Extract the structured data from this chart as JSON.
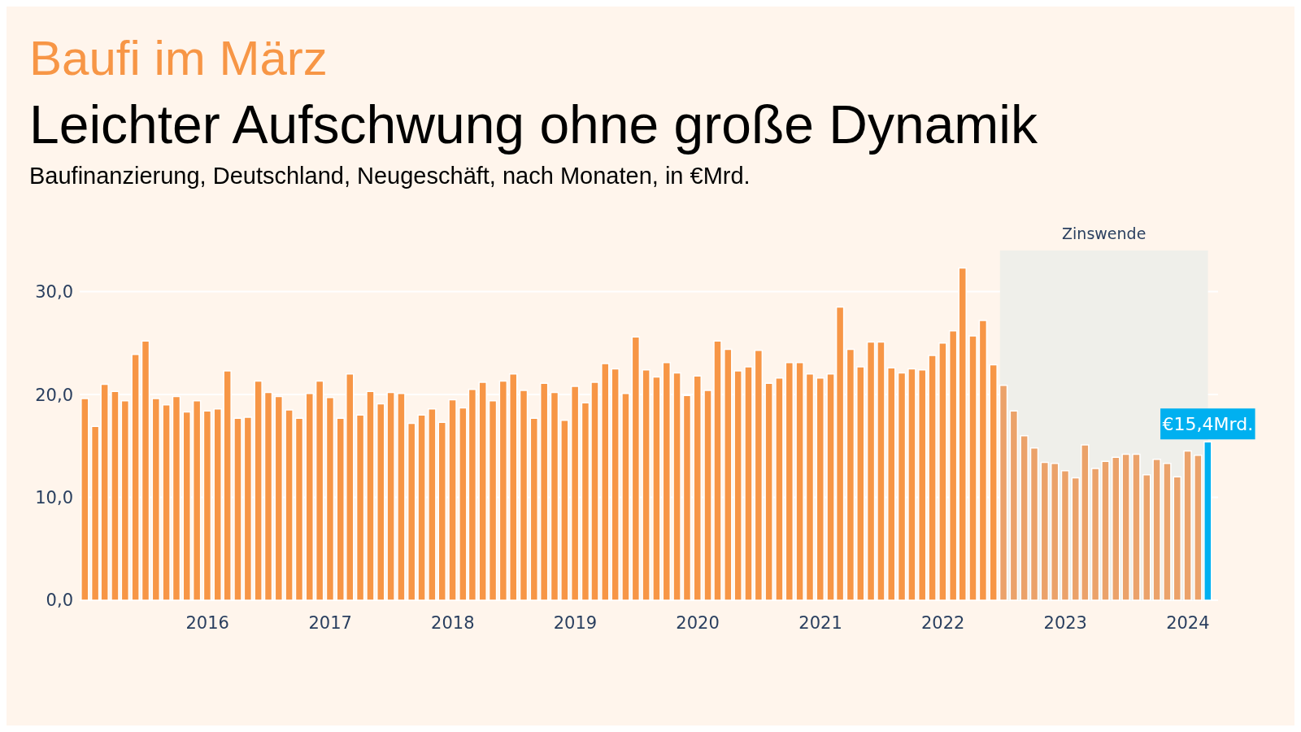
{
  "chart_data": {
    "type": "bar",
    "title": "Baufi im März",
    "subtitle": "Leichter Aufschwung ohne große Dynamik",
    "annotations": [
      "Baufinanzierung, Deutschland, Neugeschäft, nach Monaten, in €Mrd."
    ],
    "x": [
      "2015-01",
      "2015-02",
      "2015-03",
      "2015-04",
      "2015-05",
      "2015-06",
      "2015-07",
      "2015-08",
      "2015-09",
      "2015-10",
      "2015-11",
      "2015-12",
      "2016-01",
      "2016-02",
      "2016-03",
      "2016-04",
      "2016-05",
      "2016-06",
      "2016-07",
      "2016-08",
      "2016-09",
      "2016-10",
      "2016-11",
      "2016-12",
      "2017-01",
      "2017-02",
      "2017-03",
      "2017-04",
      "2017-05",
      "2017-06",
      "2017-07",
      "2017-08",
      "2017-09",
      "2017-10",
      "2017-11",
      "2017-12",
      "2018-01",
      "2018-02",
      "2018-03",
      "2018-04",
      "2018-05",
      "2018-06",
      "2018-07",
      "2018-08",
      "2018-09",
      "2018-10",
      "2018-11",
      "2018-12",
      "2019-01",
      "2019-02",
      "2019-03",
      "2019-04",
      "2019-05",
      "2019-06",
      "2019-07",
      "2019-08",
      "2019-09",
      "2019-10",
      "2019-11",
      "2019-12",
      "2020-01",
      "2020-02",
      "2020-03",
      "2020-04",
      "2020-05",
      "2020-06",
      "2020-07",
      "2020-08",
      "2020-09",
      "2020-10",
      "2020-11",
      "2020-12",
      "2021-01",
      "2021-02",
      "2021-03",
      "2021-04",
      "2021-05",
      "2021-06",
      "2021-07",
      "2021-08",
      "2021-09",
      "2021-10",
      "2021-11",
      "2021-12",
      "2022-01",
      "2022-02",
      "2022-03",
      "2022-04",
      "2022-05",
      "2022-06",
      "2022-07",
      "2022-08",
      "2022-09",
      "2022-10",
      "2022-11",
      "2022-12",
      "2023-01",
      "2023-02",
      "2023-03",
      "2023-04",
      "2023-05",
      "2023-06",
      "2023-07",
      "2023-08",
      "2023-09",
      "2023-10",
      "2023-11",
      "2023-12",
      "2024-01",
      "2024-02",
      "2024-03"
    ],
    "values": [
      19.6,
      16.9,
      21.0,
      20.3,
      19.4,
      23.9,
      25.2,
      19.6,
      19.0,
      19.8,
      18.3,
      19.4,
      18.4,
      18.6,
      22.3,
      17.7,
      17.8,
      21.3,
      20.2,
      19.8,
      18.5,
      17.7,
      20.1,
      21.3,
      19.7,
      17.7,
      22.0,
      18.0,
      20.3,
      19.1,
      20.2,
      20.1,
      17.2,
      18.0,
      18.6,
      17.3,
      19.5,
      18.7,
      20.5,
      21.2,
      19.4,
      21.3,
      22.0,
      20.4,
      17.7,
      21.1,
      20.2,
      17.5,
      20.8,
      19.2,
      21.2,
      23.0,
      22.5,
      20.1,
      25.6,
      22.4,
      21.7,
      23.1,
      22.1,
      19.9,
      21.8,
      20.4,
      25.2,
      24.4,
      22.3,
      22.7,
      24.3,
      21.1,
      21.6,
      23.1,
      23.1,
      22.0,
      21.6,
      22.0,
      28.5,
      24.4,
      22.7,
      25.1,
      25.1,
      22.6,
      22.1,
      22.5,
      22.4,
      23.8,
      25.0,
      26.2,
      32.3,
      25.7,
      27.2,
      22.9,
      20.9,
      18.4,
      16.0,
      14.8,
      13.4,
      13.3,
      12.6,
      11.9,
      15.1,
      12.8,
      13.5,
      13.9,
      14.2,
      14.2,
      12.2,
      13.7,
      13.3,
      12.0,
      14.5,
      14.1,
      15.4
    ],
    "colors": [
      "#f79646",
      "#f79646",
      "#f79646",
      "#f79646",
      "#f79646",
      "#f79646",
      "#f79646",
      "#f79646",
      "#f79646",
      "#f79646",
      "#f79646",
      "#f79646",
      "#f79646",
      "#f79646",
      "#f79646",
      "#f79646",
      "#f79646",
      "#f79646",
      "#f79646",
      "#f79646",
      "#f79646",
      "#f79646",
      "#f79646",
      "#f79646",
      "#f79646",
      "#f79646",
      "#f79646",
      "#f79646",
      "#f79646",
      "#f79646",
      "#f79646",
      "#f79646",
      "#f79646",
      "#f79646",
      "#f79646",
      "#f79646",
      "#f79646",
      "#f79646",
      "#f79646",
      "#f79646",
      "#f79646",
      "#f79646",
      "#f79646",
      "#f79646",
      "#f79646",
      "#f79646",
      "#f79646",
      "#f79646",
      "#f79646",
      "#f79646",
      "#f79646",
      "#f79646",
      "#f79646",
      "#f79646",
      "#f79646",
      "#f79646",
      "#f79646",
      "#f79646",
      "#f79646",
      "#f79646",
      "#f79646",
      "#f79646",
      "#f79646",
      "#f79646",
      "#f79646",
      "#f79646",
      "#f79646",
      "#f79646",
      "#f79646",
      "#f79646",
      "#f79646",
      "#f79646",
      "#f79646",
      "#f79646",
      "#f79646",
      "#f79646",
      "#f79646",
      "#f79646",
      "#f79646",
      "#f79646",
      "#f79646",
      "#f79646",
      "#f79646",
      "#f79646",
      "#f79646",
      "#f79646",
      "#f79646",
      "#f79646",
      "#f79646",
      "#f79646",
      "#eba26a",
      "#eba26a",
      "#eba26a",
      "#eba26a",
      "#eba26a",
      "#eba26a",
      "#eba26a",
      "#eba26a",
      "#eba26a",
      "#eba26a",
      "#eba26a",
      "#eba26a",
      "#eba26a",
      "#eba26a",
      "#eba26a",
      "#eba26a",
      "#eba26a",
      "#eba26a",
      "#eba26a",
      "#eba26a",
      "#00b0f0"
    ],
    "value_labels": [
      null,
      null,
      null,
      null,
      null,
      null,
      null,
      null,
      null,
      null,
      null,
      null,
      null,
      null,
      null,
      null,
      null,
      null,
      null,
      null,
      null,
      null,
      null,
      null,
      null,
      null,
      null,
      null,
      null,
      null,
      null,
      null,
      null,
      null,
      null,
      null,
      null,
      null,
      null,
      null,
      null,
      null,
      null,
      null,
      null,
      null,
      null,
      null,
      null,
      null,
      null,
      null,
      null,
      null,
      null,
      null,
      null,
      null,
      null,
      null,
      null,
      null,
      null,
      null,
      null,
      null,
      null,
      null,
      null,
      null,
      null,
      null,
      null,
      null,
      null,
      null,
      null,
      null,
      null,
      null,
      null,
      null,
      null,
      null,
      null,
      null,
      null,
      null,
      null,
      null,
      null,
      null,
      null,
      null,
      null,
      null,
      null,
      null,
      null,
      null,
      null,
      null,
      null,
      null,
      null,
      null,
      null,
      null,
      null,
      null,
      "€15,4Mrd."
    ],
    "xlim": [
      "2014-12-16",
      "2024-03-31"
    ],
    "xticks": [
      "2016",
      "2017",
      "2018",
      "2019",
      "2020",
      "2021",
      "2022",
      "2023",
      "2024"
    ],
    "ylim": [
      0,
      34
    ],
    "yticks": [
      {
        "value": 0,
        "label": "0,0"
      },
      {
        "value": 10,
        "label": "10,0"
      },
      {
        "value": 20,
        "label": "20,0"
      },
      {
        "value": 30,
        "label": "30,0"
      }
    ],
    "bands": [
      {
        "axis": "x",
        "from": "2022-06-20",
        "to": "2024-03-01",
        "label": "Zinswende",
        "color": "#efefea"
      }
    ],
    "grid": "y"
  }
}
